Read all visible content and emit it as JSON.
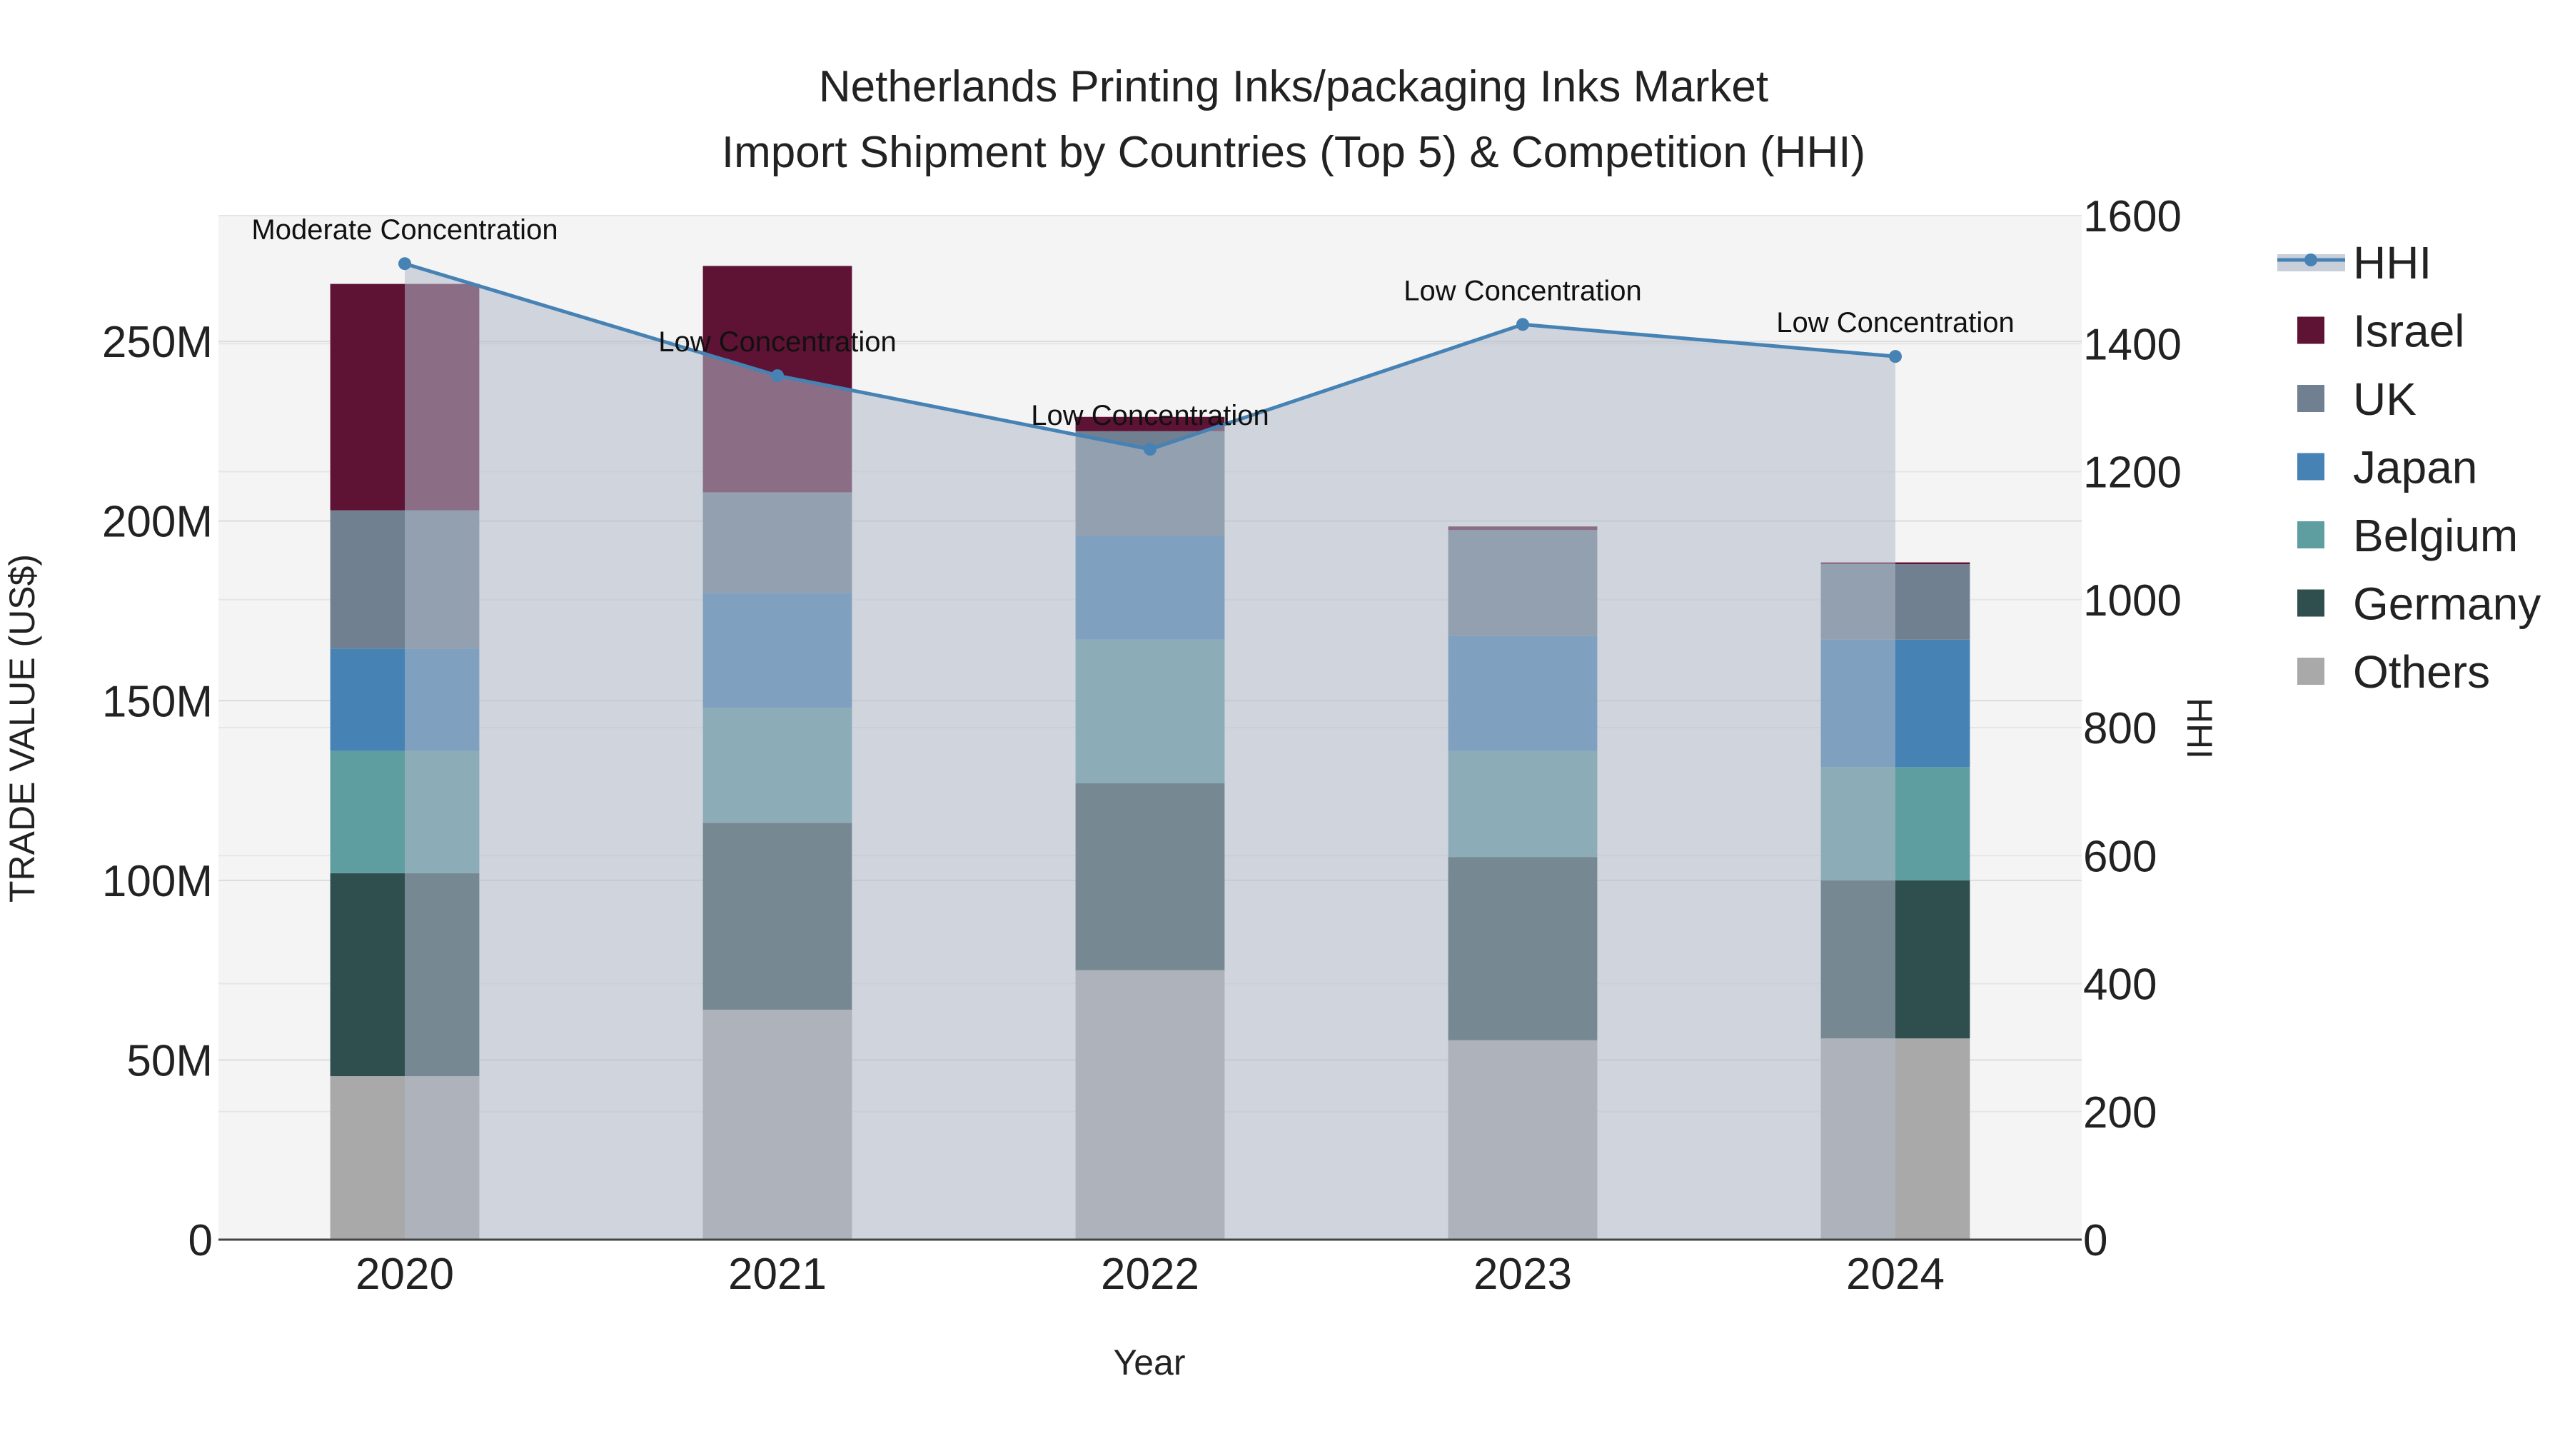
{
  "chart_data": {
    "type": "bar",
    "title_line1": "Netherlands Printing Inks/packaging Inks Market",
    "title_line2": "Import Shipment by Countries (Top 5) & Competition (HHI)",
    "xlabel": "Year",
    "ylabel": "TRADE VALUE (US$)",
    "y2label": "HHI",
    "categories": [
      "2020",
      "2021",
      "2022",
      "2023",
      "2024"
    ],
    "ylim": [
      0,
      285000000
    ],
    "y2lim": [
      0,
      1600
    ],
    "y_ticks": [
      0,
      50000000,
      100000000,
      150000000,
      200000000,
      250000000
    ],
    "y_tick_labels": [
      "0",
      "50M",
      "100M",
      "150M",
      "200M",
      "250M"
    ],
    "y2_ticks": [
      0,
      200,
      400,
      600,
      800,
      1000,
      1200,
      1400,
      1600
    ],
    "y2_tick_labels": [
      "0",
      "200",
      "400",
      "600",
      "800",
      "1000",
      "1200",
      "1400",
      "1600"
    ],
    "series": [
      {
        "name": "Others",
        "color": "#a9a9a9",
        "values": [
          45500000,
          64000000,
          75000000,
          55500000,
          56000000
        ]
      },
      {
        "name": "Germany",
        "color": "#2f4f4f",
        "values": [
          56500000,
          52000000,
          52000000,
          51000000,
          44000000
        ]
      },
      {
        "name": "Belgium",
        "color": "#5f9ea0",
        "values": [
          34000000,
          32000000,
          40000000,
          29500000,
          31500000
        ]
      },
      {
        "name": "Japan",
        "color": "#4682b4",
        "values": [
          28500000,
          32000000,
          29000000,
          32000000,
          35500000
        ]
      },
      {
        "name": "UK",
        "color": "#708090",
        "values": [
          38500000,
          28000000,
          29000000,
          29500000,
          21000000
        ]
      },
      {
        "name": "Israel",
        "color": "#5e1234",
        "values": [
          63000000,
          63000000,
          4000000,
          1000000,
          500000
        ]
      }
    ],
    "hhi": {
      "name": "HHI",
      "color": "#4682b4",
      "values": [
        1525,
        1350,
        1235,
        1430,
        1380
      ],
      "labels": [
        "Moderate Concentration",
        "Low Concentration",
        "Low Concentration",
        "Low Concentration",
        "Low Concentration"
      ]
    },
    "legend_order": [
      "HHI",
      "Israel",
      "UK",
      "Japan",
      "Belgium",
      "Germany",
      "Others"
    ],
    "legend_position": "right",
    "grid": true
  }
}
